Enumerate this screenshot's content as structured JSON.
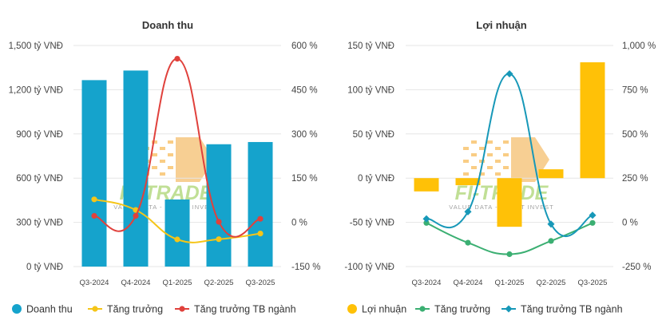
{
  "colors": {
    "bar_revenue": "#15A3CC",
    "line_growth_revenue": "#F5C518",
    "line_industry_revenue": "#E0413C",
    "bar_profit": "#FFC107",
    "line_growth_profit": "#3BAF72",
    "line_industry_profit": "#1798B8"
  },
  "chart_data": [
    {
      "type": "bar",
      "title": "Doanh thu",
      "categories": [
        "Q3-2024",
        "Q4-2024",
        "Q1-2025",
        "Q2-2025",
        "Q3-2025"
      ],
      "y_left_ticks": [
        "1,500 tỷ VNĐ",
        "1,200 tỷ VNĐ",
        "900 tỷ VNĐ",
        "600 tỷ VNĐ",
        "300 tỷ VNĐ",
        "0 tỷ VNĐ"
      ],
      "y_right_ticks": [
        "600 %",
        "450 %",
        "300 %",
        "150 %",
        "0 %",
        "-150 %"
      ],
      "ylim_left": [
        0,
        1500
      ],
      "ylim_right": [
        -150,
        600
      ],
      "series": [
        {
          "name": "Doanh thu",
          "kind": "bar",
          "axis": "left",
          "values": [
            1265,
            1330,
            455,
            830,
            845
          ]
        },
        {
          "name": "Tăng trưởng",
          "kind": "line",
          "axis": "right",
          "values": [
            78,
            42,
            -58,
            -57,
            -38
          ]
        },
        {
          "name": "Tăng trưởng TB ngành",
          "kind": "line",
          "axis": "right",
          "values": [
            22,
            22,
            555,
            2,
            12
          ]
        }
      ],
      "legend": [
        "Doanh thu",
        "Tăng trưởng",
        "Tăng trưởng TB ngành"
      ]
    },
    {
      "type": "bar",
      "title": "Lợi nhuận",
      "categories": [
        "Q3-2024",
        "Q4-2024",
        "Q1-2025",
        "Q2-2025",
        "Q3-2025"
      ],
      "y_left_ticks": [
        "150 tỷ VNĐ",
        "100 tỷ VNĐ",
        "50 tỷ VNĐ",
        "0 tỷ VNĐ",
        "-50 tỷ VNĐ",
        "-100 tỷ VNĐ"
      ],
      "y_right_ticks": [
        "1,000 %",
        "750 %",
        "500 %",
        "250 %",
        "0 %",
        "-250 %"
      ],
      "ylim_left": [
        -100,
        150
      ],
      "ylim_right": [
        -250,
        1000
      ],
      "series": [
        {
          "name": "Lợi nhuận",
          "kind": "bar",
          "axis": "left",
          "values": [
            -15,
            -8,
            -55,
            10,
            131
          ]
        },
        {
          "name": "Tăng trưởng",
          "kind": "line",
          "axis": "right",
          "values": [
            -3,
            -115,
            -180,
            -105,
            -3
          ]
        },
        {
          "name": "Tăng trưởng TB ngành",
          "kind": "line",
          "axis": "right",
          "values": [
            20,
            60,
            840,
            -10,
            40
          ]
        }
      ],
      "legend": [
        "Lợi nhuận",
        "Tăng trưởng",
        "Tăng trưởng TB ngành"
      ]
    }
  ],
  "watermark": {
    "brand": "FI-TRADE",
    "tagline": "VALUE DATA - SMART INVEST"
  }
}
